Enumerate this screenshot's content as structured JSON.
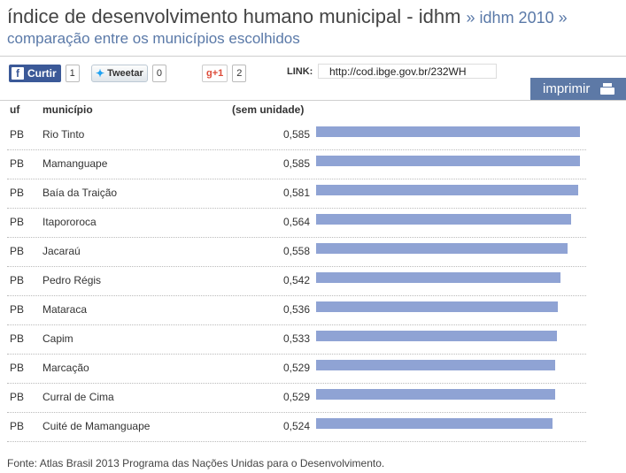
{
  "header": {
    "title": "índice de desenvolvimento humano municipal - idhm",
    "title_suffix": "» idhm 2010 »",
    "subtitle": "comparação entre os municípios escolhidos"
  },
  "social": {
    "facebook_label": "Curtir",
    "facebook_count": "1",
    "twitter_label": "Tweetar",
    "twitter_count": "0",
    "gplus_label": "+1",
    "gplus_count": "2"
  },
  "link": {
    "label": "LINK:",
    "url": "http://cod.ibge.gov.br/232WH"
  },
  "print_label": "imprimir",
  "table": {
    "col_uf": "uf",
    "col_municipio": "município",
    "col_value": "(sem unidade)"
  },
  "chart_data": {
    "type": "bar",
    "orientation": "horizontal",
    "xlim": [
      0,
      0.65
    ],
    "color": "#8fa3d4",
    "rows": [
      {
        "uf": "PB",
        "municipio": "Rio Tinto",
        "label": "0,585",
        "value": 0.585
      },
      {
        "uf": "PB",
        "municipio": "Mamanguape",
        "label": "0,585",
        "value": 0.585
      },
      {
        "uf": "PB",
        "municipio": "Baía da Traição",
        "label": "0,581",
        "value": 0.581
      },
      {
        "uf": "PB",
        "municipio": "Itapororoca",
        "label": "0,564",
        "value": 0.564
      },
      {
        "uf": "PB",
        "municipio": "Jacaraú",
        "label": "0,558",
        "value": 0.558
      },
      {
        "uf": "PB",
        "municipio": "Pedro Régis",
        "label": "0,542",
        "value": 0.542
      },
      {
        "uf": "PB",
        "municipio": "Mataraca",
        "label": "0,536",
        "value": 0.536
      },
      {
        "uf": "PB",
        "municipio": "Capim",
        "label": "0,533",
        "value": 0.533
      },
      {
        "uf": "PB",
        "municipio": "Marcação",
        "label": "0,529",
        "value": 0.529
      },
      {
        "uf": "PB",
        "municipio": "Curral de Cima",
        "label": "0,529",
        "value": 0.529
      },
      {
        "uf": "PB",
        "municipio": "Cuité de Mamanguape",
        "label": "0,524",
        "value": 0.524
      }
    ]
  },
  "footer": "Fonte: Atlas Brasil 2013 Programa das Nações Unidas para o Desenvolvimento."
}
